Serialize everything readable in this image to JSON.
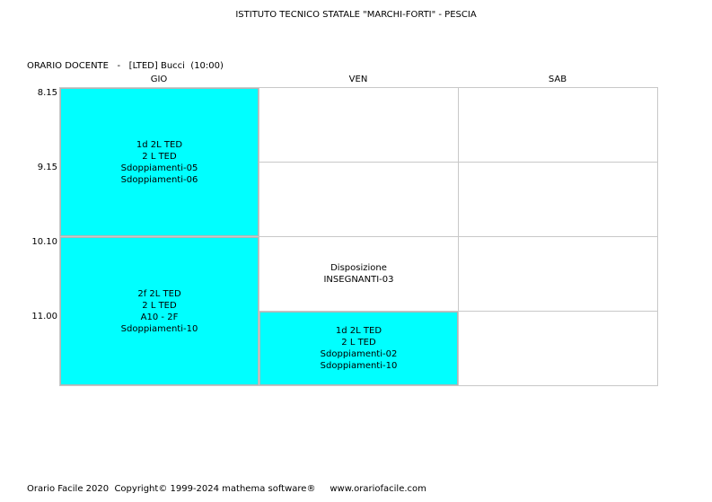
{
  "title": "ISTITUTO TECNICO STATALE \"MARCHI-FORTI\" - PESCIA",
  "header": {
    "line": "ORARIO DOCENTE   -   [LTED] Bucci  (10:00)"
  },
  "days": [
    "GIO",
    "VEN",
    "SAB"
  ],
  "times": [
    "8.15",
    "9.15",
    "10.10",
    "11.00"
  ],
  "lessons": {
    "gio_1": [
      "1d 2L TED",
      "2 L TED",
      "Sdoppiamenti-05",
      "Sdoppiamenti-06"
    ],
    "gio_2": [
      "2f 2L TED",
      "2 L TED",
      "A10 - 2F",
      "Sdoppiamenti-10"
    ],
    "ven_disp": [
      "Disposizione",
      "INSEGNANTI-03"
    ],
    "ven_4": [
      "1d 2L TED",
      "2 L TED",
      "Sdoppiamenti-02",
      "Sdoppiamenti-10"
    ]
  },
  "colors": {
    "lesson_fill": "#00ffff",
    "grid": "#c8c8c8"
  },
  "footer": "Orario Facile 2020  Copyright© 1999-2024 mathema software®     www.orariofacile.com"
}
